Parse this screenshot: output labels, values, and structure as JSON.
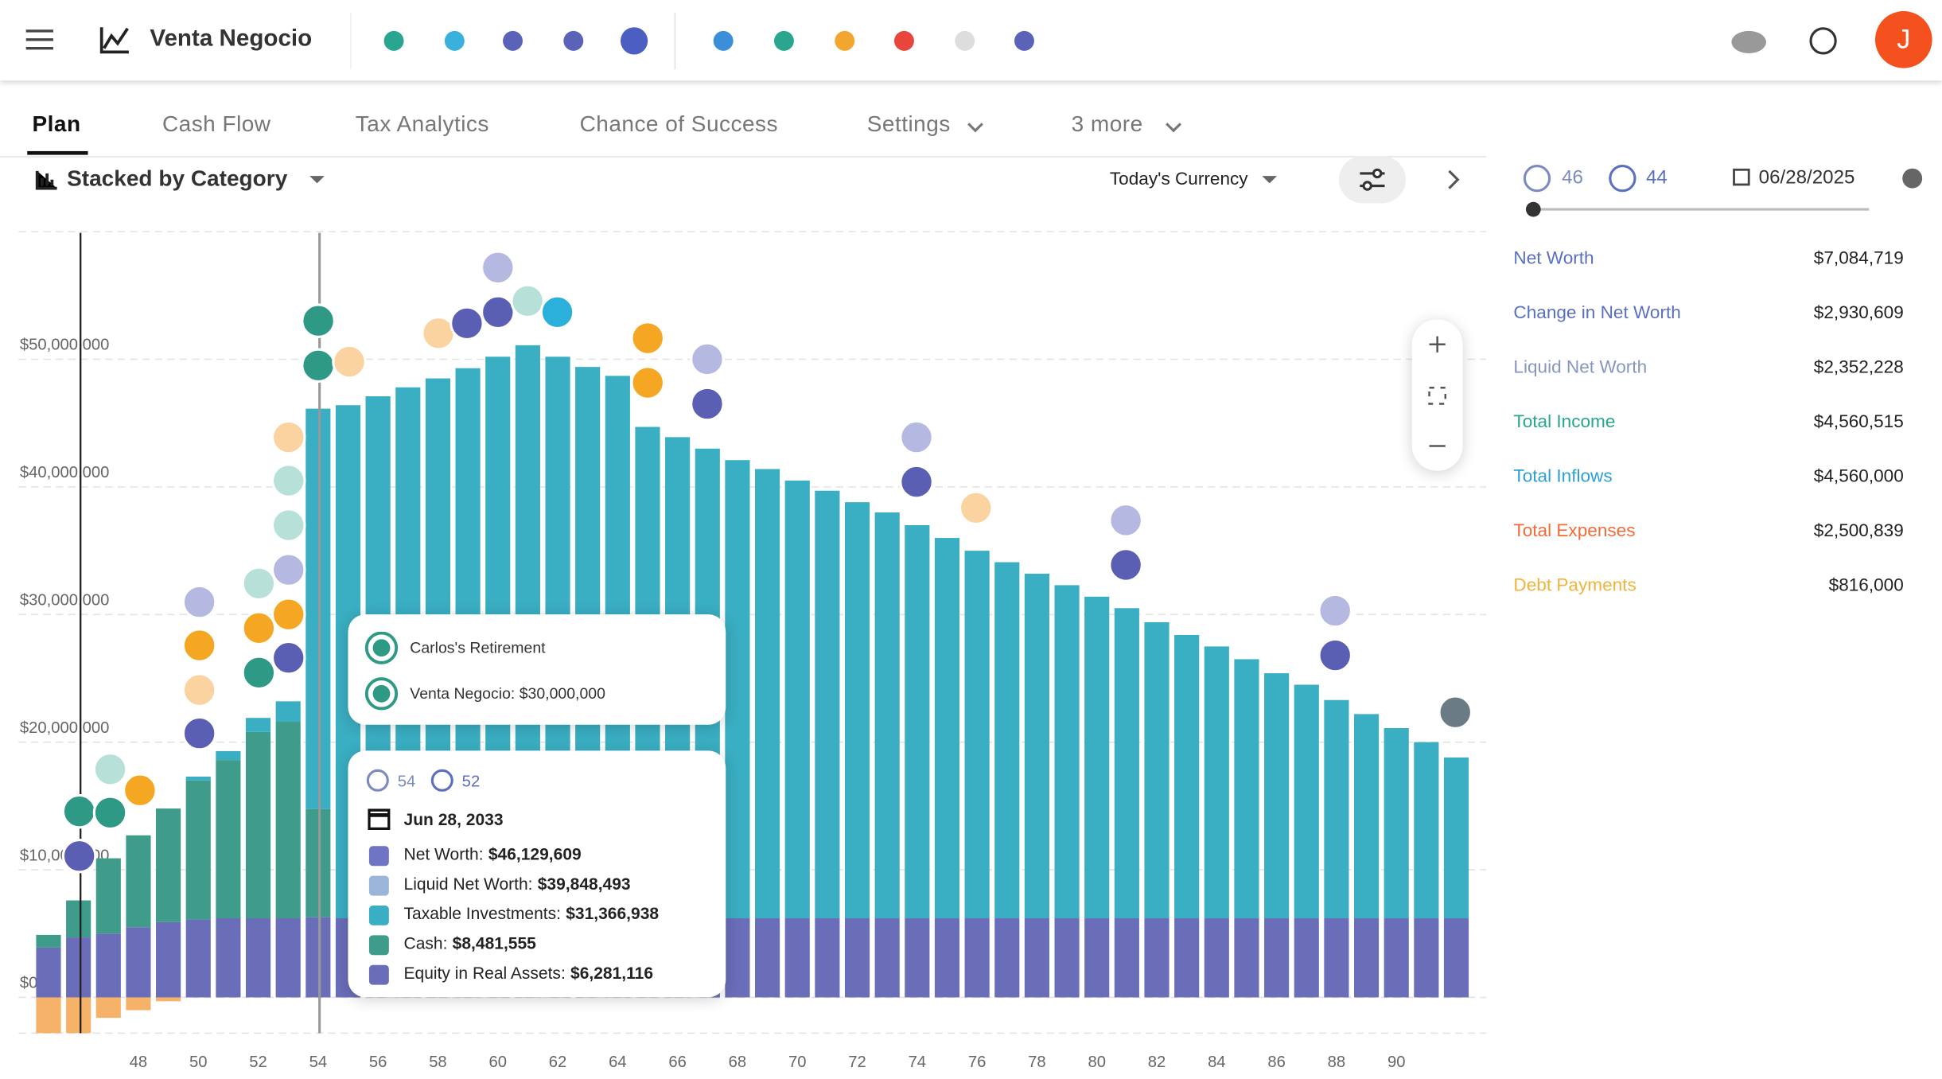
{
  "header": {
    "title": "Venta Negocio",
    "avatar": "J"
  },
  "tabs": [
    "Plan",
    "Cash Flow",
    "Tax Analytics",
    "Chance of Success",
    "Settings",
    "3 more"
  ],
  "toolbar": {
    "view": "Stacked by Category",
    "currency": "Today's Currency"
  },
  "sidebar": {
    "age1": "46",
    "age2": "44",
    "date": "06/28/2025",
    "stats": [
      {
        "label": "Net Worth",
        "value": "$7,084,719",
        "color": "#5b6fc2"
      },
      {
        "label": "Change in Net Worth",
        "value": "$2,930,609",
        "color": "#5b6fc2"
      },
      {
        "label": "Liquid Net Worth",
        "value": "$2,352,228",
        "color": "#8796c0"
      },
      {
        "label": "Total Income",
        "value": "$4,560,515",
        "color": "#26a68e"
      },
      {
        "label": "Total Inflows",
        "value": "$4,560,000",
        "color": "#2e9fd4"
      },
      {
        "label": "Total Expenses",
        "value": "$2,500,839",
        "color": "#f26b38"
      },
      {
        "label": "Debt Payments",
        "value": "$816,000",
        "color": "#f2b33d"
      }
    ]
  },
  "events_tooltip": {
    "rows": [
      "Carlos's Retirement",
      "Venta Negocio: $30,000,000"
    ]
  },
  "hover_tooltip": {
    "age1": "54",
    "age2": "52",
    "date": "Jun 28, 2033",
    "rows": [
      {
        "label": "Net Worth:",
        "value": "$46,129,609",
        "color": "#6f74c4"
      },
      {
        "label": "Liquid Net Worth:",
        "value": "$39,848,493",
        "color": "#9bb5d8"
      },
      {
        "label": "Taxable Investments:",
        "value": "$31,366,938",
        "color": "#3aaec2"
      },
      {
        "label": "Cash:",
        "value": "$8,481,555",
        "color": "#3f9b8a"
      },
      {
        "label": "Equity in Real Assets:",
        "value": "$6,281,116",
        "color": "#6a6db8"
      }
    ]
  },
  "chart_data": {
    "type": "stacked-bar",
    "x": [
      45,
      46,
      47,
      48,
      49,
      50,
      51,
      52,
      53,
      54,
      55,
      56,
      57,
      58,
      59,
      60,
      61,
      62,
      63,
      64,
      65,
      66,
      67,
      68,
      69,
      70,
      71,
      72,
      73,
      74,
      75,
      76,
      77,
      78,
      79,
      80,
      81,
      82,
      83,
      84,
      85,
      86,
      87,
      88,
      89,
      90,
      91,
      92
    ],
    "xlim": [
      44,
      93
    ],
    "xticks": [
      48,
      50,
      52,
      54,
      56,
      58,
      60,
      62,
      64,
      66,
      68,
      70,
      72,
      74,
      76,
      78,
      80,
      82,
      84,
      86,
      88,
      90
    ],
    "ylim": [
      -2800000,
      60000000
    ],
    "yticks": [
      {
        "value": 0,
        "label": "$0"
      },
      {
        "value": 10000000,
        "label": "$10,000,000"
      },
      {
        "value": 20000000,
        "label": "$20,000,000"
      },
      {
        "value": 30000000,
        "label": "$30,000,000"
      },
      {
        "value": 40000000,
        "label": "$40,000,000"
      },
      {
        "value": 50000000,
        "label": "$50,000,000"
      }
    ],
    "grid": true,
    "series": [
      {
        "color": "#6a6db8",
        "values": [
          3900000,
          4700000,
          5000000,
          5500000,
          5900000,
          6100000,
          6200000,
          6200000,
          6200000,
          6281116,
          6200000,
          6200000,
          6200000,
          6200000,
          6200000,
          6200000,
          6200000,
          6200000,
          6200000,
          6200000,
          6200000,
          6200000,
          6200000,
          6200000,
          6200000,
          6200000,
          6200000,
          6200000,
          6200000,
          6200000,
          6200000,
          6200000,
          6200000,
          6200000,
          6200000,
          6200000,
          6200000,
          6200000,
          6200000,
          6200000,
          6200000,
          6200000,
          6200000,
          6200000,
          6200000,
          6200000,
          6200000,
          6200000
        ]
      },
      {
        "color": "#3f9b8a",
        "values": [
          1000000,
          2900000,
          5900000,
          7200000,
          8900000,
          10900000,
          12400000,
          14600000,
          15400000,
          8481555,
          0,
          0,
          0,
          0,
          0,
          0,
          0,
          0,
          0,
          0,
          0,
          0,
          0,
          0,
          0,
          0,
          0,
          0,
          0,
          0,
          0,
          0,
          0,
          0,
          0,
          0,
          0,
          0,
          0,
          0,
          0,
          0,
          0,
          0,
          0,
          0,
          0,
          0
        ]
      },
      {
        "color": "#3aaec2",
        "values": [
          0,
          0,
          0,
          0,
          0,
          300000,
          700000,
          1100000,
          1600000,
          31366938,
          40200000,
          40900000,
          41600000,
          42300000,
          43100000,
          44000000,
          44900000,
          44000000,
          43200000,
          42500000,
          38500000,
          37700000,
          36800000,
          35900000,
          35200000,
          34300000,
          33500000,
          32600000,
          31800000,
          30800000,
          29800000,
          28800000,
          27900000,
          27000000,
          26100000,
          25200000,
          24300000,
          23200000,
          22200000,
          21300000,
          20300000,
          19200000,
          18300000,
          17100000,
          16000000,
          14900000,
          13800000,
          12600000
        ]
      },
      {
        "color": "#f7b26a",
        "values": [
          -2800000,
          -2800000,
          -1600000,
          -1000000,
          -300000,
          0,
          0,
          0,
          0,
          0,
          0,
          0,
          0,
          0,
          0,
          0,
          0,
          0,
          0,
          0,
          0,
          0,
          0,
          0,
          0,
          0,
          0,
          0,
          0,
          0,
          0,
          0,
          0,
          0,
          0,
          0,
          0,
          0,
          0,
          0,
          0,
          0,
          0,
          0,
          0,
          0,
          0,
          0
        ]
      }
    ]
  }
}
